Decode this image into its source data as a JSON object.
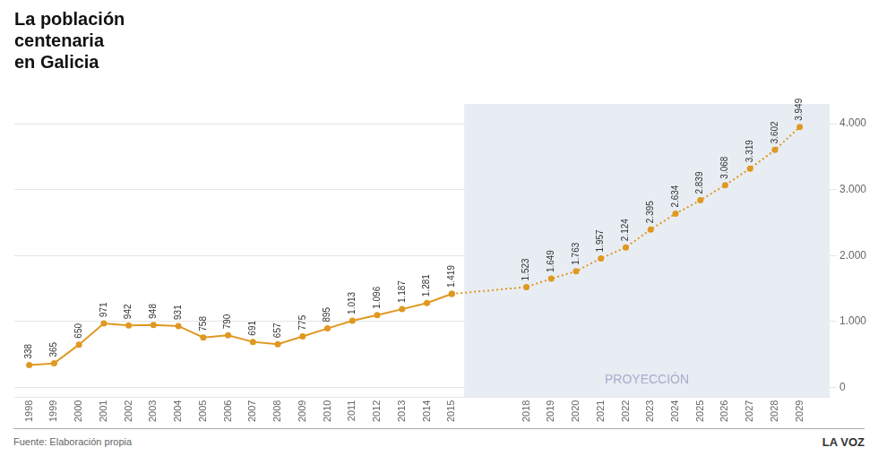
{
  "chart_data": {
    "type": "line",
    "title": [
      "La población",
      "centenaria",
      "en Galicia"
    ],
    "xlim": [
      1997.4,
      2030.2
    ],
    "xticks": [
      1998,
      1999,
      2000,
      2001,
      2002,
      2003,
      2004,
      2005,
      2006,
      2007,
      2008,
      2009,
      2010,
      2011,
      2012,
      2013,
      2014,
      2015,
      2018,
      2019,
      2020,
      2021,
      2022,
      2023,
      2024,
      2025,
      2026,
      2027,
      2028,
      2029
    ],
    "ylim": [
      -150,
      4300
    ],
    "yticks": [
      0,
      {
        "value": 1000,
        "label": "1.000"
      },
      {
        "value": 2000,
        "label": "2.000"
      },
      {
        "value": 3000,
        "label": "3.000"
      },
      {
        "value": 4000,
        "label": "4.000"
      }
    ],
    "grid": true,
    "data_labels": true,
    "series": [
      {
        "x": [
          1998,
          1999,
          2000,
          2001,
          2002,
          2003,
          2004,
          2005,
          2006,
          2007,
          2008,
          2009,
          2010,
          2011,
          2012,
          2013,
          2014,
          2015
        ],
        "values": [
          338,
          365,
          650,
          971,
          942,
          948,
          931,
          758,
          790,
          691,
          657,
          775,
          895,
          1013,
          1096,
          1187,
          1281,
          1419
        ],
        "value_labels": [
          "338",
          "365",
          "650",
          "971",
          "942",
          "948",
          "931",
          "758",
          "790",
          "691",
          "657",
          "775",
          "895",
          "1.013",
          "1.096",
          "1.187",
          "1.281",
          "1.419"
        ],
        "color": "#E09820",
        "line_style": "solid",
        "marker": "circle"
      },
      {
        "x": [
          2015,
          2018,
          2019,
          2020,
          2021,
          2022,
          2023,
          2024,
          2025,
          2026,
          2027,
          2028,
          2029
        ],
        "values": [
          1419,
          1523,
          1649,
          1763,
          1957,
          2124,
          2395,
          2634,
          2839,
          3068,
          3319,
          3602,
          3949
        ],
        "value_labels": [
          null,
          "1.523",
          "1.649",
          "1.763",
          "1.957",
          "2.124",
          "2.395",
          "2.634",
          "2.839",
          "3.068",
          "3.319",
          "3.602",
          "3.949"
        ],
        "color": "#E09820",
        "line_style": "dotted",
        "marker": "circle"
      }
    ],
    "shaded": {
      "x": [
        2015.5,
        2030.2
      ],
      "color": "#E8EDF3"
    },
    "annotations": [
      {
        "text": "PROYECCIÓN",
        "color": "#AAAACC"
      }
    ],
    "source": "Fuente: Elaboración propia",
    "brand": "LA VOZ"
  }
}
